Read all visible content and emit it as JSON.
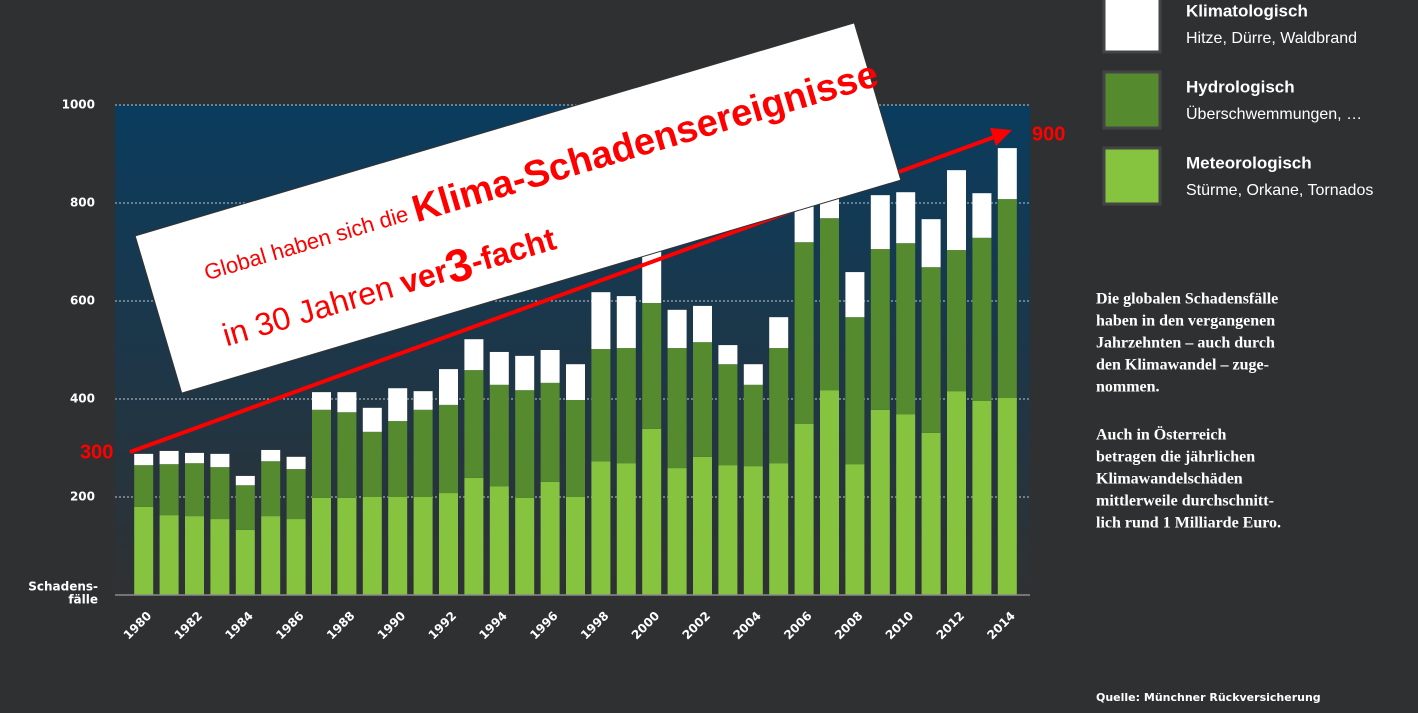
{
  "chart_data": {
    "type": "stacked_bar",
    "y_label_lines": [
      "Schadens-",
      "fälle"
    ],
    "categories": [
      "1980",
      null,
      "1982",
      null,
      "1984",
      null,
      "1986",
      null,
      "1988",
      null,
      "1990",
      null,
      "1992",
      null,
      "1994",
      null,
      "1996",
      null,
      "1998",
      null,
      "2000",
      null,
      "2002",
      null,
      "2004",
      null,
      "2006",
      null,
      "2008",
      null,
      "2010",
      null,
      "2012",
      null,
      "2014"
    ],
    "series": [
      {
        "name": "Meteorologisch",
        "description": "Stürme, Orkane, Tornados",
        "color": "#86c440",
        "values": [
          180,
          163,
          161,
          155,
          133,
          161,
          155,
          198,
          198,
          200,
          200,
          200,
          208,
          239,
          222,
          198,
          231,
          200,
          273,
          269,
          339,
          259,
          282,
          265,
          263,
          269,
          349,
          418,
          267,
          378,
          369,
          331,
          416,
          396,
          402
        ]
      },
      {
        "name": "Hydrologisch",
        "description": "Überschwemmungen, …",
        "color": "#558a2f",
        "values": [
          85,
          104,
          108,
          106,
          91,
          112,
          102,
          180,
          175,
          133,
          155,
          178,
          180,
          220,
          207,
          220,
          202,
          198,
          229,
          235,
          257,
          245,
          234,
          206,
          166,
          235,
          371,
          351,
          300,
          328,
          349,
          338,
          288,
          333,
          406
        ]
      },
      {
        "name": "Klimatologisch",
        "description": "Hitze, Dürre, Waldbrand",
        "color": "#ffffff",
        "values": [
          23,
          27,
          21,
          27,
          19,
          23,
          25,
          36,
          41,
          49,
          67,
          38,
          73,
          63,
          67,
          70,
          67,
          73,
          116,
          106,
          114,
          78,
          74,
          39,
          42,
          63,
          78,
          102,
          92,
          110,
          104,
          98,
          163,
          91,
          104
        ]
      }
    ],
    "ylim": [
      0,
      1000
    ],
    "yticks": [
      200,
      400,
      600,
      800,
      1000
    ],
    "grid": true,
    "legend": "top-right",
    "annotation": {
      "line1": [
        "Global haben sich die ",
        "Klima-Schadensereignisse"
      ],
      "line2": [
        "in 30 Jahren ",
        "ver",
        "3",
        "-facht"
      ],
      "start_label": "300",
      "end_label": "900"
    },
    "side_text": [
      [
        "Die globalen Schadensfälle",
        "haben in den vergangenen",
        "Jahrzehnten – auch durch",
        "den Klimawandel – zuge-",
        "nommen."
      ],
      [
        "Auch in Österreich",
        "betragen die jährlichen",
        "Klimawandelschäden",
        "mittlerweile durchschnitt-",
        "lich rund 1 Milliarde Euro."
      ]
    ],
    "source": "Quelle: Münchner Rückversicherung"
  }
}
